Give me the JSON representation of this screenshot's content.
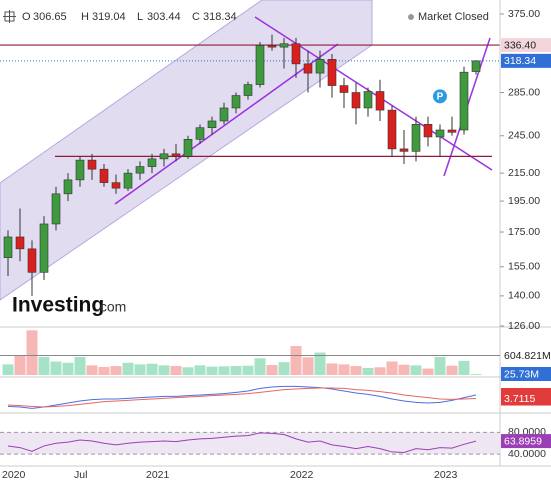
{
  "header": {
    "o_label": "O",
    "h_label": "H",
    "l_label": "L",
    "c_label": "C",
    "status": "Market Closed"
  },
  "logo": {
    "name": "Investing",
    "suffix": ".com"
  },
  "chart_data": [
    {
      "type": "candlestick",
      "categories": [
        "2020",
        null,
        null,
        null,
        null,
        null,
        "Jul",
        null,
        null,
        null,
        null,
        null,
        "2021",
        null,
        null,
        null,
        null,
        null,
        null,
        null,
        null,
        null,
        null,
        null,
        "2022",
        null,
        null,
        null,
        null,
        null,
        null,
        null,
        null,
        null,
        null,
        null,
        "2023",
        null,
        null,
        null
      ],
      "open": [
        160,
        172,
        165,
        152,
        180,
        200,
        210,
        225,
        218,
        208,
        204,
        215,
        220,
        226,
        230,
        228,
        242,
        252,
        258,
        270,
        282,
        293,
        336,
        334,
        338,
        315,
        305,
        320,
        292,
        285,
        270,
        286,
        268,
        234,
        232,
        255,
        244,
        250,
        250,
        306.65
      ],
      "high": [
        176,
        190,
        170,
        185,
        205,
        215,
        228,
        230,
        222,
        214,
        218,
        224,
        230,
        234,
        238,
        245,
        255,
        262,
        275,
        285,
        296,
        340,
        349,
        345,
        345,
        330,
        330,
        326,
        300,
        295,
        290,
        298,
        272,
        250,
        262,
        262,
        255,
        262,
        312,
        319.04
      ],
      "low": [
        150,
        158,
        140,
        148,
        176,
        195,
        205,
        210,
        205,
        200,
        202,
        210,
        215,
        220,
        224,
        226,
        238,
        246,
        255,
        265,
        278,
        290,
        330,
        310,
        300,
        285,
        290,
        280,
        270,
        255,
        262,
        258,
        228,
        222,
        224,
        236,
        228,
        245,
        246,
        303.44
      ],
      "close": [
        172,
        165,
        152,
        180,
        200,
        210,
        225,
        218,
        208,
        204,
        215,
        220,
        226,
        230,
        228,
        242,
        252,
        258,
        270,
        282,
        293,
        336,
        334,
        338,
        315,
        305,
        320,
        292,
        285,
        270,
        286,
        268,
        234,
        232,
        255,
        244,
        250,
        248,
        306,
        318.34
      ],
      "up_color": "#3f9a3f",
      "down_color": "#d9201f",
      "ylim": [
        126,
        375
      ],
      "log_scale": true,
      "yticks": [
        {
          "value": 375,
          "label": "375.00"
        },
        {
          "value": 285,
          "label": "285.00"
        },
        {
          "value": 245,
          "label": "245.00"
        },
        {
          "value": 215,
          "label": "215.00"
        },
        {
          "value": 195,
          "label": "195.00"
        },
        {
          "value": 175,
          "label": "175.00"
        },
        {
          "value": 155,
          "label": "155.00"
        },
        {
          "value": 140,
          "label": "140.00"
        },
        {
          "value": 126,
          "label": "126.00"
        }
      ],
      "levels": [
        {
          "value": 336.4,
          "label": "336.40"
        },
        228
      ],
      "level_color": "#8e1d3a",
      "last_color": "#2f6fd6",
      "marker": "P"
    },
    {
      "type": "bar",
      "values": [
        330,
        620,
        1390,
        560,
        420,
        380,
        560,
        300,
        250,
        280,
        380,
        330,
        350,
        300,
        280,
        240,
        300,
        260,
        270,
        280,
        290,
        520,
        310,
        400,
        900,
        550,
        700,
        360,
        330,
        280,
        220,
        240,
        420,
        320,
        300,
        200,
        560,
        290,
        440,
        25.73
      ],
      "value_labels": [
        null,
        null,
        null,
        null,
        null,
        null,
        null,
        null,
        null,
        null,
        null,
        null,
        null,
        null,
        null,
        null,
        null,
        null,
        null,
        null,
        null,
        null,
        null,
        null,
        null,
        null,
        null,
        null,
        null,
        null,
        null,
        null,
        null,
        null,
        null,
        null,
        null,
        null,
        null,
        "25.73M"
      ],
      "up_color": "#a6e3c6",
      "down_color": "#f6b7b5",
      "ylim": [
        0,
        1400
      ],
      "average": {
        "value": 604.821,
        "label": "604.821M"
      }
    },
    {
      "type": "line",
      "series": [
        {
          "color": "#4a6fe3",
          "values": [
            -8,
            -9,
            -11,
            -9,
            -6,
            -3,
            0,
            2,
            3,
            3,
            4,
            5,
            6,
            7,
            7,
            8,
            9,
            10,
            11,
            13,
            15,
            19,
            21,
            22,
            22,
            21,
            20,
            18,
            15,
            12,
            10,
            7,
            3,
            0,
            -2,
            -3,
            -2,
            1,
            5,
            9.0134
          ]
        },
        {
          "color": "#e8665f",
          "values": [
            -6,
            -7,
            -8,
            -9,
            -8,
            -7,
            -5,
            -3,
            -1,
            0,
            1,
            2,
            3,
            4,
            5,
            6,
            7,
            8,
            9,
            10,
            11,
            13,
            15,
            17,
            18,
            19,
            19.5,
            19.5,
            19,
            17,
            16,
            14,
            12,
            9,
            7,
            5,
            3,
            2.5,
            3,
            3.7115
          ]
        }
      ],
      "ylim": [
        -15,
        30
      ]
    },
    {
      "type": "line",
      "series": [
        {
          "color": "#9a3fb5",
          "values": [
            55,
            52,
            45,
            55,
            60,
            62,
            66,
            64,
            60,
            57,
            60,
            62,
            63,
            64,
            63,
            66,
            68,
            69,
            71,
            73,
            74,
            79,
            78,
            76,
            68,
            62,
            64,
            57,
            54,
            50,
            54,
            50,
            44,
            43,
            50,
            48,
            52,
            51,
            58,
            63.8959
          ]
        }
      ],
      "ylim": [
        20,
        110
      ],
      "yticks": [
        {
          "value": 80,
          "label": "80.0000"
        },
        {
          "value": 40,
          "label": "40.0000"
        }
      ],
      "band_color": "#efe6f4"
    }
  ]
}
